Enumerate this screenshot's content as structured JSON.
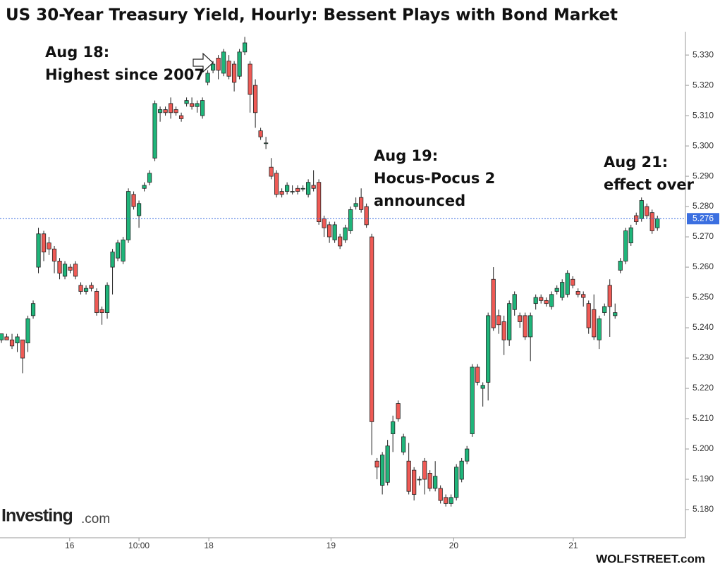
{
  "chart_data": {
    "type": "candlestick",
    "title": "US 30-Year Treasury Yield, Hourly: Bessent Plays with Bond Market",
    "x": [
      0,
      1,
      2,
      3,
      4,
      5,
      6,
      7,
      8,
      9,
      10,
      11,
      12,
      13,
      14,
      15,
      16,
      17,
      18,
      19,
      20,
      21,
      22,
      23,
      24,
      25,
      26,
      27,
      28,
      29,
      30,
      31,
      32,
      33,
      34,
      35,
      36,
      37,
      38,
      39,
      40,
      41,
      42,
      43,
      44,
      45,
      46,
      47,
      48,
      49,
      50,
      51,
      52,
      53,
      54,
      55,
      56,
      57,
      58,
      59,
      60,
      61,
      62,
      63,
      64,
      65,
      66,
      67,
      68,
      69,
      70,
      71,
      72,
      73,
      74,
      75,
      76,
      77,
      78,
      79,
      80,
      81,
      82,
      83,
      84,
      85,
      86,
      87,
      88,
      89,
      90,
      91,
      92,
      93,
      94,
      95,
      96,
      97,
      98,
      99,
      100,
      101,
      102,
      103,
      104,
      105,
      106,
      107,
      108,
      109,
      110,
      111,
      112,
      113,
      114,
      115,
      116,
      117,
      118,
      119,
      120,
      121,
      122,
      123,
      124
    ],
    "ohlc": [
      [
        5.236,
        5.238,
        5.235,
        5.238
      ],
      [
        5.237,
        5.238,
        5.236,
        5.236
      ],
      [
        5.236,
        5.238,
        5.233,
        5.234
      ],
      [
        5.235,
        5.238,
        5.232,
        5.237
      ],
      [
        5.236,
        5.236,
        5.225,
        5.23
      ],
      [
        5.235,
        5.244,
        5.232,
        5.243
      ],
      [
        5.244,
        5.249,
        5.243,
        5.248
      ],
      [
        5.26,
        5.273,
        5.258,
        5.271
      ],
      [
        5.271,
        5.272,
        5.262,
        5.265
      ],
      [
        5.268,
        5.27,
        5.264,
        5.266
      ],
      [
        5.266,
        5.267,
        5.258,
        5.262
      ],
      [
        5.262,
        5.263,
        5.256,
        5.258
      ],
      [
        5.257,
        5.262,
        5.256,
        5.261
      ],
      [
        5.26,
        5.261,
        5.258,
        5.259
      ],
      [
        5.261,
        5.262,
        5.256,
        5.257
      ],
      [
        5.254,
        5.255,
        5.251,
        5.252
      ],
      [
        5.252,
        5.254,
        5.251,
        5.253
      ],
      [
        5.254,
        5.255,
        5.252,
        5.253
      ],
      [
        5.252,
        5.253,
        5.244,
        5.245
      ],
      [
        5.246,
        5.247,
        5.241,
        5.245
      ],
      [
        5.245,
        5.255,
        5.243,
        5.254
      ],
      [
        5.26,
        5.266,
        5.251,
        5.265
      ],
      [
        5.263,
        5.269,
        5.262,
        5.268
      ],
      [
        5.262,
        5.27,
        5.261,
        5.269
      ],
      [
        5.269,
        5.286,
        5.268,
        5.285
      ],
      [
        5.284,
        5.285,
        5.279,
        5.28
      ],
      [
        5.277,
        5.282,
        5.273,
        5.281
      ],
      [
        5.286,
        5.288,
        5.285,
        5.287
      ],
      [
        5.288,
        5.292,
        5.287,
        5.291
      ],
      [
        5.296,
        5.315,
        5.295,
        5.314
      ],
      [
        5.311,
        5.313,
        5.308,
        5.312
      ],
      [
        5.312,
        5.313,
        5.31,
        5.311
      ],
      [
        5.314,
        5.316,
        5.309,
        5.311
      ],
      [
        5.312,
        5.313,
        5.31,
        5.311
      ],
      [
        5.31,
        5.311,
        5.308,
        5.309
      ],
      [
        5.314,
        5.316,
        5.313,
        5.315
      ],
      [
        5.314,
        5.316,
        5.312,
        5.313
      ],
      [
        5.313,
        5.315,
        5.311,
        5.314
      ],
      [
        5.31,
        5.316,
        5.309,
        5.315
      ],
      [
        5.321,
        5.325,
        5.32,
        5.324
      ],
      [
        5.325,
        5.328,
        5.324,
        5.327
      ],
      [
        5.329,
        5.33,
        5.322,
        5.325
      ],
      [
        5.324,
        5.332,
        5.323,
        5.331
      ],
      [
        5.328,
        5.33,
        5.322,
        5.323
      ],
      [
        5.327,
        5.328,
        5.318,
        5.321
      ],
      [
        5.323,
        5.332,
        5.322,
        5.331
      ],
      [
        5.331,
        5.336,
        5.33,
        5.334
      ],
      [
        5.327,
        5.328,
        5.311,
        5.317
      ],
      [
        5.32,
        5.322,
        5.306,
        5.311
      ],
      [
        5.305,
        5.306,
        5.302,
        5.303
      ],
      [
        5.301,
        5.303,
        5.299,
        5.301
      ],
      [
        5.293,
        5.296,
        5.289,
        5.29
      ],
      [
        5.291,
        5.292,
        5.283,
        5.284
      ],
      [
        5.285,
        5.286,
        5.283,
        5.284
      ],
      [
        5.285,
        5.288,
        5.284,
        5.287
      ],
      [
        5.285,
        5.287,
        5.284,
        5.285
      ],
      [
        5.286,
        5.287,
        5.284,
        5.285
      ],
      [
        5.286,
        5.287,
        5.285,
        5.286
      ],
      [
        5.284,
        5.289,
        5.283,
        5.288
      ],
      [
        5.287,
        5.292,
        5.285,
        5.286
      ],
      [
        5.288,
        5.289,
        5.274,
        5.275
      ],
      [
        5.276,
        5.277,
        5.27,
        5.273
      ],
      [
        5.274,
        5.275,
        5.268,
        5.27
      ],
      [
        5.269,
        5.275,
        5.268,
        5.274
      ],
      [
        5.27,
        5.271,
        5.266,
        5.267
      ],
      [
        5.269,
        5.274,
        5.268,
        5.273
      ],
      [
        5.272,
        5.28,
        5.271,
        5.279
      ],
      [
        5.28,
        5.283,
        5.279,
        5.281
      ],
      [
        5.283,
        5.286,
        5.278,
        5.279
      ],
      [
        5.28,
        5.281,
        5.273,
        5.274
      ],
      [
        5.27,
        5.271,
        5.198,
        5.209
      ],
      [
        5.196,
        5.197,
        5.19,
        5.194
      ],
      [
        5.188,
        5.199,
        5.185,
        5.198
      ],
      [
        5.189,
        5.203,
        5.188,
        5.201
      ],
      [
        5.205,
        5.211,
        5.199,
        5.209
      ],
      [
        5.215,
        5.216,
        5.209,
        5.21
      ],
      [
        5.199,
        5.205,
        5.198,
        5.204
      ],
      [
        5.196,
        5.202,
        5.185,
        5.186
      ],
      [
        5.193,
        5.194,
        5.183,
        5.185
      ],
      [
        5.19,
        5.191,
        5.188,
        5.19
      ],
      [
        5.196,
        5.197,
        5.185,
        5.19
      ],
      [
        5.192,
        5.193,
        5.186,
        5.187
      ],
      [
        5.187,
        5.196,
        5.186,
        5.191
      ],
      [
        5.187,
        5.188,
        5.182,
        5.183
      ],
      [
        5.184,
        5.185,
        5.181,
        5.182
      ],
      [
        5.182,
        5.185,
        5.181,
        5.184
      ],
      [
        5.184,
        5.195,
        5.183,
        5.194
      ],
      [
        5.19,
        5.197,
        5.189,
        5.196
      ],
      [
        5.196,
        5.201,
        5.195,
        5.2
      ],
      [
        5.205,
        5.228,
        5.204,
        5.227
      ],
      [
        5.227,
        5.228,
        5.221,
        5.222
      ],
      [
        5.22,
        5.222,
        5.214,
        5.221
      ],
      [
        5.222,
        5.245,
        5.216,
        5.244
      ],
      [
        5.256,
        5.26,
        5.239,
        5.24
      ],
      [
        5.244,
        5.246,
        5.238,
        5.241
      ],
      [
        5.242,
        5.244,
        5.231,
        5.236
      ],
      [
        5.236,
        5.249,
        5.234,
        5.248
      ],
      [
        5.246,
        5.252,
        5.244,
        5.251
      ],
      [
        5.244,
        5.245,
        5.24,
        5.242
      ],
      [
        5.244,
        5.245,
        5.236,
        5.237
      ],
      [
        5.237,
        5.245,
        5.229,
        5.244
      ],
      [
        5.248,
        5.251,
        5.246,
        5.25
      ],
      [
        5.25,
        5.251,
        5.248,
        5.249
      ],
      [
        5.249,
        5.25,
        5.247,
        5.248
      ],
      [
        5.247,
        5.252,
        5.246,
        5.251
      ],
      [
        5.252,
        5.254,
        5.251,
        5.253
      ],
      [
        5.25,
        5.256,
        5.249,
        5.255
      ],
      [
        5.251,
        5.259,
        5.25,
        5.258
      ],
      [
        5.256,
        5.257,
        5.253,
        5.254
      ],
      [
        5.252,
        5.253,
        5.25,
        5.251
      ],
      [
        5.251,
        5.252,
        5.247,
        5.25
      ],
      [
        5.248,
        5.249,
        5.238,
        5.24
      ],
      [
        5.246,
        5.251,
        5.236,
        5.237
      ],
      [
        5.236,
        5.244,
        5.233,
        5.243
      ],
      [
        5.245,
        5.248,
        5.244,
        5.247
      ],
      [
        5.254,
        5.256,
        5.237,
        5.247
      ],
      [
        5.244,
        5.248,
        5.243,
        5.245
      ],
      [
        5.259,
        5.263,
        5.258,
        5.262
      ],
      [
        5.262,
        5.273,
        5.261,
        5.272
      ],
      [
        5.268,
        5.274,
        5.267,
        5.273
      ],
      [
        5.277,
        5.278,
        5.274,
        5.275
      ],
      [
        5.276,
        5.283,
        5.275,
        5.282
      ],
      [
        5.28,
        5.281,
        5.276,
        5.277
      ],
      [
        5.278,
        5.279,
        5.271,
        5.272
      ],
      [
        5.273,
        5.277,
        5.272,
        5.276
      ]
    ],
    "up_color": "#1fb57a",
    "down_color": "#ef5a55",
    "last_value": 5.276,
    "last_line_color": "#3b6fe0",
    "xlim": [
      -0.27,
      129.3
    ],
    "xticks": [
      {
        "value": 12.9,
        "label": "16"
      },
      {
        "value": 26.0,
        "label": "10:00"
      },
      {
        "value": 39.2,
        "label": "18"
      },
      {
        "value": 62.3,
        "label": "19"
      },
      {
        "value": 85.5,
        "label": "20"
      },
      {
        "value": 108.1,
        "label": "21"
      }
    ],
    "ylim": [
      5.1707,
      5.3377
    ],
    "yticks": [
      {
        "value": 5.18,
        "label": "5.180"
      },
      {
        "value": 5.19,
        "label": "5.190"
      },
      {
        "value": 5.2,
        "label": "5.200"
      },
      {
        "value": 5.21,
        "label": "5.210"
      },
      {
        "value": 5.22,
        "label": "5.220"
      },
      {
        "value": 5.23,
        "label": "5.230"
      },
      {
        "value": 5.24,
        "label": "5.240"
      },
      {
        "value": 5.25,
        "label": "5.250"
      },
      {
        "value": 5.26,
        "label": "5.260"
      },
      {
        "value": 5.27,
        "label": "5.270"
      },
      {
        "value": 5.28,
        "label": "5.280"
      },
      {
        "value": 5.29,
        "label": "5.290"
      },
      {
        "value": 5.3,
        "label": "5.300"
      },
      {
        "value": 5.31,
        "label": "5.310"
      },
      {
        "value": 5.32,
        "label": "5.320"
      },
      {
        "value": 5.33,
        "label": "5.330"
      }
    ],
    "annotations": [
      {
        "lines": [
          "Aug 18:",
          "Highest since 2007"
        ]
      },
      {
        "lines": [
          "Aug 19:",
          "Hocus-Pocus 2",
          "announced"
        ]
      },
      {
        "lines": [
          "Aug 21:",
          "effect over"
        ]
      }
    ],
    "source_logo": "Investing",
    "source_logo_suffix": ".com",
    "credit": "WOLFSTREET.com"
  }
}
